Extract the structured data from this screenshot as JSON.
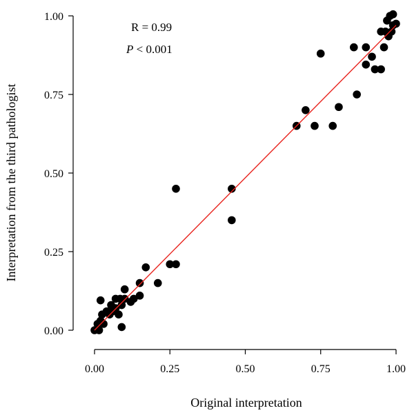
{
  "chart_data": {
    "type": "scatter",
    "title": "",
    "xlabel": "Original interpretation",
    "ylabel": "Interpretation from the third pathologist",
    "xlim": [
      0,
      1
    ],
    "ylim": [
      0,
      1
    ],
    "xticks": [
      "0.00",
      "0.25",
      "0.50",
      "0.75",
      "1.00"
    ],
    "yticks": [
      "0.00",
      "0.25",
      "0.50",
      "0.75",
      "1.00"
    ],
    "grid": false,
    "legend": "none",
    "annotation": {
      "r": "R = 0.99",
      "p_symbol": "P",
      "p_value": " < 0.001"
    },
    "point_color": "#000000",
    "fit_line_color": "#e8221c",
    "fit_line": {
      "x": [
        0,
        1
      ],
      "y": [
        0.0,
        0.97
      ]
    },
    "series": [
      {
        "points": [
          [
            0.0,
            0.0
          ],
          [
            0.01,
            0.02
          ],
          [
            0.015,
            0.0
          ],
          [
            0.02,
            0.03
          ],
          [
            0.025,
            0.05
          ],
          [
            0.03,
            0.02
          ],
          [
            0.02,
            0.095
          ],
          [
            0.04,
            0.06
          ],
          [
            0.05,
            0.05
          ],
          [
            0.055,
            0.08
          ],
          [
            0.06,
            0.06
          ],
          [
            0.07,
            0.07
          ],
          [
            0.07,
            0.1
          ],
          [
            0.08,
            0.05
          ],
          [
            0.085,
            0.1
          ],
          [
            0.09,
            0.01
          ],
          [
            0.09,
            0.08
          ],
          [
            0.1,
            0.13
          ],
          [
            0.1,
            0.1
          ],
          [
            0.12,
            0.09
          ],
          [
            0.13,
            0.1
          ],
          [
            0.15,
            0.11
          ],
          [
            0.15,
            0.15
          ],
          [
            0.17,
            0.2
          ],
          [
            0.21,
            0.15
          ],
          [
            0.25,
            0.21
          ],
          [
            0.27,
            0.21
          ],
          [
            0.27,
            0.45
          ],
          [
            0.455,
            0.45
          ],
          [
            0.455,
            0.35
          ],
          [
            0.67,
            0.65
          ],
          [
            0.7,
            0.7
          ],
          [
            0.73,
            0.65
          ],
          [
            0.75,
            0.88
          ],
          [
            0.79,
            0.65
          ],
          [
            0.81,
            0.71
          ],
          [
            0.86,
            0.9
          ],
          [
            0.87,
            0.75
          ],
          [
            0.9,
            0.9
          ],
          [
            0.9,
            0.845
          ],
          [
            0.92,
            0.87
          ],
          [
            0.93,
            0.83
          ],
          [
            0.95,
            0.95
          ],
          [
            0.95,
            0.83
          ],
          [
            0.96,
            0.9
          ],
          [
            0.965,
            0.95
          ],
          [
            0.97,
            0.985
          ],
          [
            0.975,
            0.935
          ],
          [
            0.98,
            1.0
          ],
          [
            0.985,
            0.95
          ],
          [
            0.99,
            1.005
          ],
          [
            0.99,
            0.97
          ],
          [
            1.0,
            0.975
          ]
        ]
      }
    ]
  }
}
